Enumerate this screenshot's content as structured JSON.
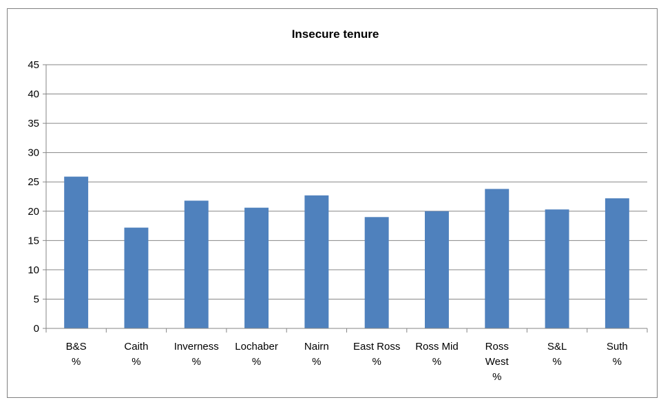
{
  "chart_data": {
    "type": "bar",
    "title": "Insecure tenure",
    "xlabel": "",
    "ylabel": "",
    "ylim": [
      0,
      45
    ],
    "yticks": [
      0,
      5,
      10,
      15,
      20,
      25,
      30,
      35,
      40,
      45
    ],
    "grid": true,
    "legend": "none",
    "bar_color": "#4F81BD",
    "categories": [
      [
        "B&S",
        "%"
      ],
      [
        "Caith",
        "%"
      ],
      [
        "Inverness",
        "%"
      ],
      [
        "Lochaber",
        "%"
      ],
      [
        "Nairn",
        "%"
      ],
      [
        "East Ross",
        "%"
      ],
      [
        "Ross Mid",
        "%"
      ],
      [
        "Ross",
        "West",
        "%"
      ],
      [
        "S&L",
        "%"
      ],
      [
        "Suth",
        "%"
      ]
    ],
    "values": [
      25.9,
      17.2,
      21.8,
      20.6,
      22.7,
      19.0,
      20.0,
      23.8,
      20.3,
      22.2
    ]
  }
}
